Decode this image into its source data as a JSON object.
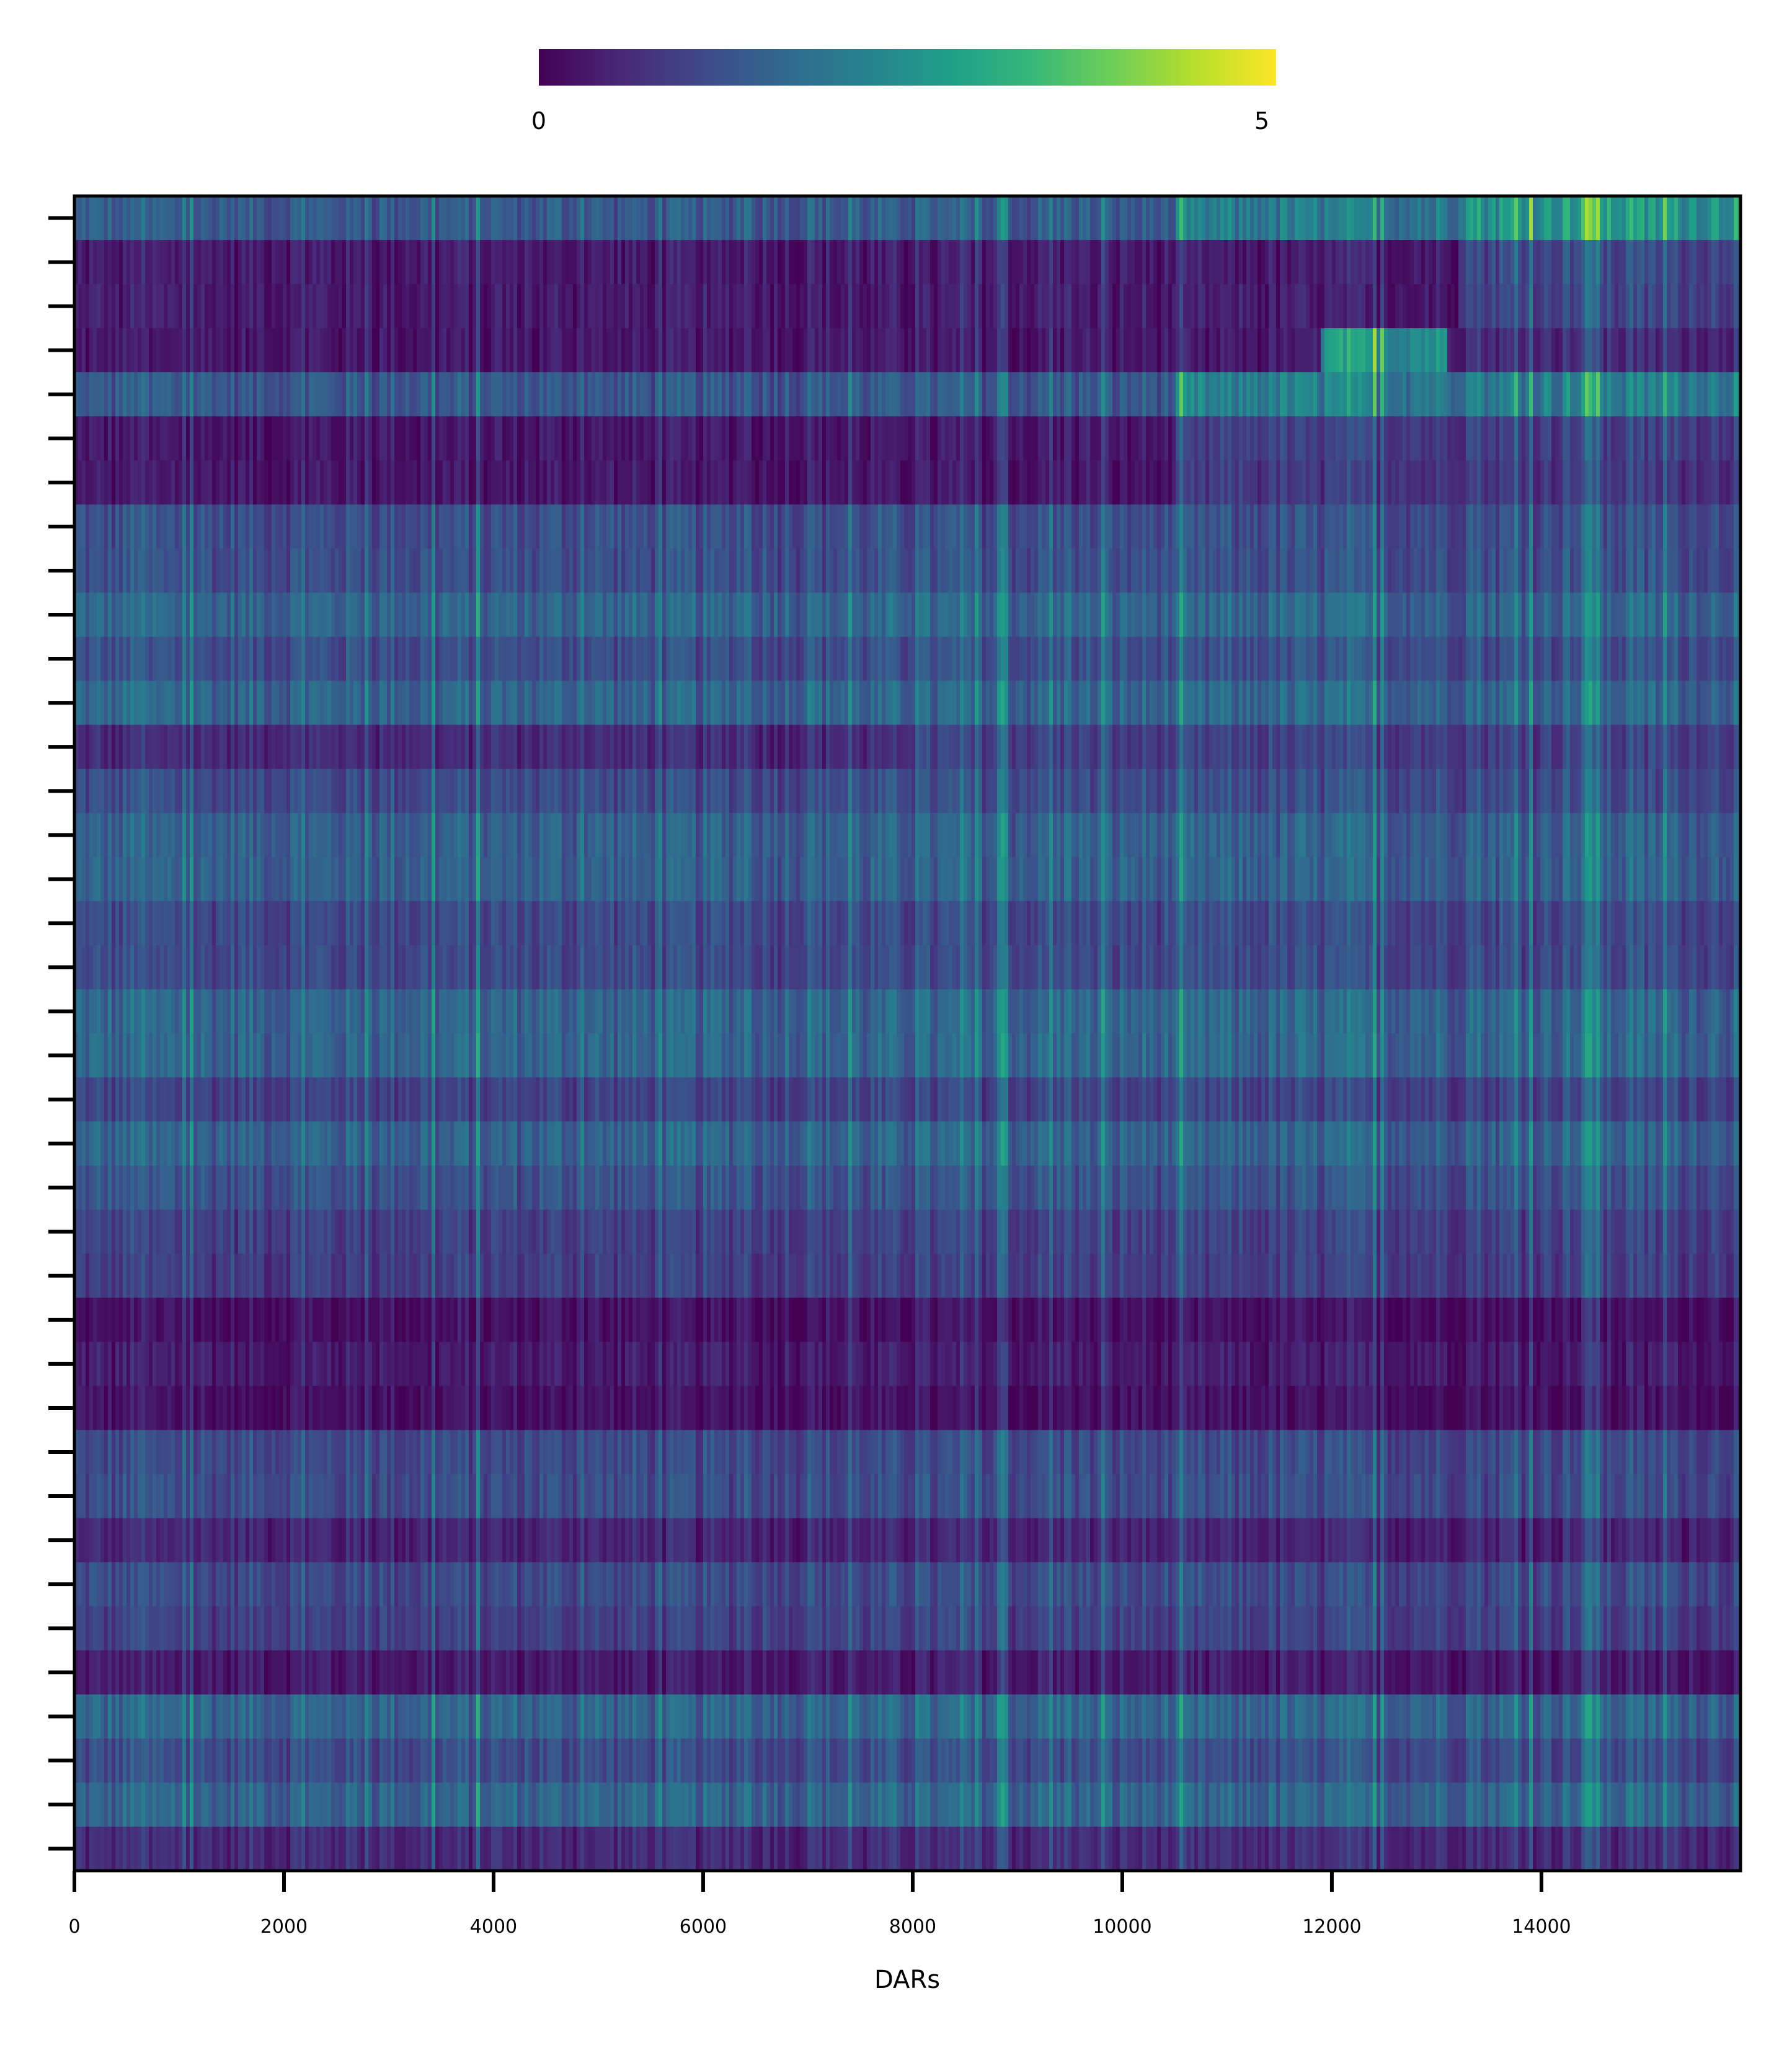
{
  "chart_data": {
    "type": "heatmap",
    "title": "",
    "xlabel": "DARs",
    "ylabel": "",
    "xlim": [
      0,
      15900
    ],
    "xticks": [
      0,
      2000,
      4000,
      6000,
      8000,
      10000,
      12000,
      14000
    ],
    "xtick_labels": [
      "0",
      "2000",
      "4000",
      "6000",
      "8000",
      "10000",
      "12000",
      "14000"
    ],
    "n_rows": 38,
    "ytick_labels_visible": false,
    "colormap": "viridis",
    "color_range": [
      0,
      5
    ],
    "colorbar": {
      "position": "top",
      "min_label": "0",
      "max_label": "5",
      "stops": [
        "#440154",
        "#482878",
        "#3e4989",
        "#31688e",
        "#26828e",
        "#1f9e89",
        "#35b779",
        "#6ece58",
        "#b5de2b",
        "#fde725"
      ]
    },
    "grid": false,
    "row_profiles": [
      {
        "row": 0,
        "segments": [
          {
            "x_start": 0,
            "x_end": 10500,
            "value": 1.4
          },
          {
            "x_end": 13200,
            "value": 2.0
          },
          {
            "x_end": 15900,
            "value": 2.6
          }
        ]
      },
      {
        "row": 1,
        "segments": [
          {
            "x_start": 0,
            "x_end": 13200,
            "value": 0.35
          },
          {
            "x_end": 15900,
            "value": 1.1
          }
        ]
      },
      {
        "row": 2,
        "segments": [
          {
            "x_start": 0,
            "x_end": 13200,
            "value": 0.35
          },
          {
            "x_end": 15900,
            "value": 1.0
          }
        ]
      },
      {
        "row": 3,
        "segments": [
          {
            "x_start": 0,
            "x_end": 11900,
            "value": 0.3
          },
          {
            "x_end": 13100,
            "value": 2.5
          },
          {
            "x_end": 15900,
            "value": 0.6
          }
        ]
      },
      {
        "row": 4,
        "segments": [
          {
            "x_start": 0,
            "x_end": 10500,
            "value": 1.35
          },
          {
            "x_end": 15900,
            "value": 2.1
          }
        ]
      },
      {
        "row": 5,
        "segments": [
          {
            "x_start": 0,
            "x_end": 10500,
            "value": 0.3
          },
          {
            "x_end": 15900,
            "value": 0.9
          }
        ]
      },
      {
        "row": 6,
        "segments": [
          {
            "x_start": 0,
            "x_end": 10500,
            "value": 0.3
          },
          {
            "x_end": 15900,
            "value": 0.8
          }
        ]
      },
      {
        "row": 7,
        "value": 1.2
      },
      {
        "row": 8,
        "value": 1.2
      },
      {
        "row": 9,
        "value": 1.6
      },
      {
        "row": 10,
        "value": 1.2
      },
      {
        "row": 11,
        "value": 1.6
      },
      {
        "row": 12,
        "segments": [
          {
            "x_start": 0,
            "x_end": 7900,
            "value": 0.6
          },
          {
            "x_end": 15900,
            "value": 0.95
          }
        ]
      },
      {
        "row": 13,
        "value": 1.15
      },
      {
        "row": 14,
        "value": 1.5
      },
      {
        "row": 15,
        "value": 1.5
      },
      {
        "row": 16,
        "value": 1.1
      },
      {
        "row": 17,
        "value": 1.1
      },
      {
        "row": 18,
        "value": 1.6
      },
      {
        "row": 19,
        "value": 1.6
      },
      {
        "row": 20,
        "value": 1.0
      },
      {
        "row": 21,
        "value": 1.55
      },
      {
        "row": 22,
        "value": 1.25
      },
      {
        "row": 23,
        "value": 0.95
      },
      {
        "row": 24,
        "value": 0.9
      },
      {
        "row": 25,
        "value": 0.2
      },
      {
        "row": 26,
        "value": 0.35
      },
      {
        "row": 27,
        "value": 0.2
      },
      {
        "row": 28,
        "value": 1.1
      },
      {
        "row": 29,
        "value": 1.15
      },
      {
        "row": 30,
        "value": 0.5
      },
      {
        "row": 31,
        "value": 1.1
      },
      {
        "row": 32,
        "value": 0.95
      },
      {
        "row": 33,
        "value": 0.35
      },
      {
        "row": 34,
        "value": 1.6
      },
      {
        "row": 35,
        "value": 1.15
      },
      {
        "row": 36,
        "value": 1.6
      },
      {
        "row": 37,
        "value": 0.6
      }
    ],
    "column_hotspots": [
      {
        "x": 600,
        "boost": 0.5
      },
      {
        "x": 6400,
        "boost": 0.4
      },
      {
        "x": 9500,
        "boost": 0.35
      },
      {
        "x": 13350,
        "boost": 0.35
      },
      {
        "x": 14450,
        "boost": 0.9
      },
      {
        "x": 14500,
        "boost": 0.7
      }
    ]
  }
}
